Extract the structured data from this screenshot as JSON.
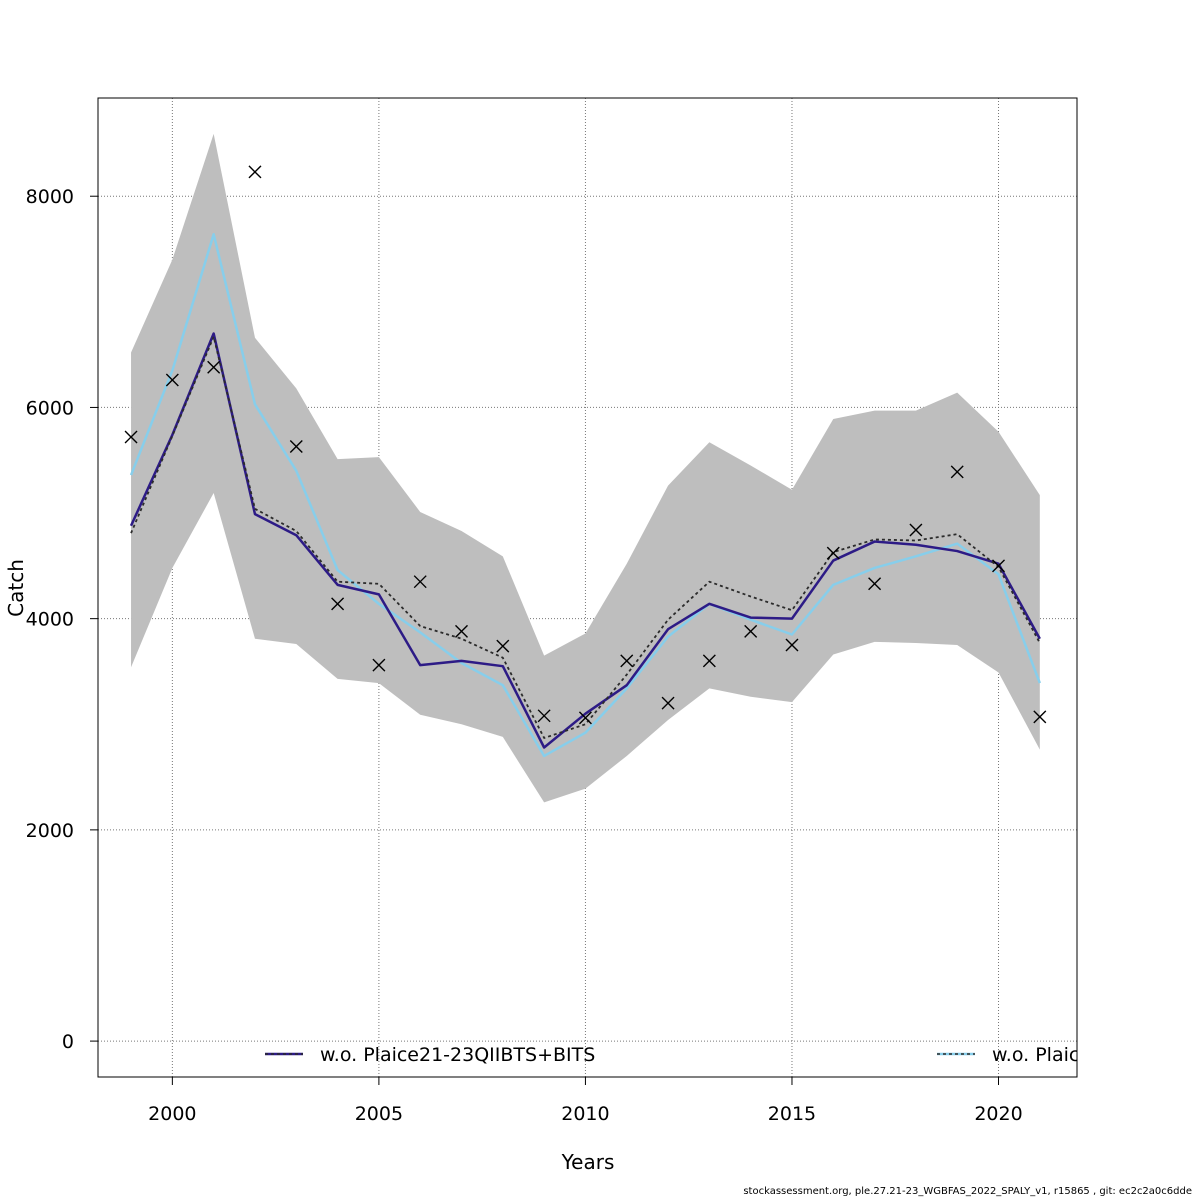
{
  "chart_data": {
    "type": "line",
    "xlabel": "Years",
    "ylabel": "Catch",
    "xlim": [
      1998.2,
      2021.9
    ],
    "ylim": [
      -340,
      8930
    ],
    "x_ticks": [
      2000,
      2005,
      2010,
      2015,
      2020
    ],
    "y_ticks": [
      0,
      2000,
      4000,
      6000,
      8000
    ],
    "grid": true,
    "legend_position": "bottom",
    "x": [
      1999,
      2000,
      2001,
      2002,
      2003,
      2004,
      2005,
      2006,
      2007,
      2008,
      2009,
      2010,
      2011,
      2012,
      2013,
      2014,
      2015,
      2016,
      2017,
      2018,
      2019,
      2020,
      2021
    ],
    "band": {
      "color": "#bebebe",
      "upper": [
        6520,
        7400,
        8590,
        6660,
        6180,
        5510,
        5530,
        5010,
        4830,
        4590,
        3650,
        3860,
        4520,
        5260,
        5670,
        5450,
        5220,
        5890,
        5970,
        5970,
        6140,
        5770,
        5170
      ],
      "lower": [
        3540,
        4480,
        5190,
        3810,
        3760,
        3430,
        3390,
        3090,
        3000,
        2880,
        2260,
        2390,
        2700,
        3040,
        3340,
        3260,
        3210,
        3660,
        3780,
        3770,
        3750,
        3490,
        2760
      ]
    },
    "series": [
      {
        "name": "w.o. Plaice21-23QIIBTS+BITS",
        "color": "#2d1b86",
        "style": "solid",
        "values": [
          4880,
          5740,
          6700,
          4990,
          4790,
          4320,
          4230,
          3560,
          3600,
          3550,
          2780,
          3100,
          3370,
          3900,
          4140,
          4010,
          4000,
          4550,
          4730,
          4700,
          4640,
          4520,
          3810
        ]
      },
      {
        "name": "",
        "color": "#2b2b2b",
        "style": "dashed",
        "values": [
          4810,
          5730,
          6670,
          5040,
          4830,
          4350,
          4330,
          3930,
          3810,
          3630,
          2870,
          3000,
          3470,
          3990,
          4350,
          4210,
          4080,
          4630,
          4750,
          4740,
          4800,
          4490,
          3770
        ]
      },
      {
        "name": "w.o. Plaic",
        "color": "#87ceeb",
        "style": "solid",
        "values": [
          5360,
          6350,
          7640,
          6030,
          5400,
          4460,
          4140,
          3870,
          3580,
          3370,
          2700,
          2920,
          3340,
          3830,
          4140,
          3990,
          3850,
          4320,
          4480,
          4590,
          4710,
          4420,
          3390
        ]
      }
    ],
    "observations": {
      "marker": "x",
      "values": [
        5720,
        6260,
        6380,
        8230,
        5630,
        4140,
        3560,
        4350,
        3880,
        3740,
        3080,
        3060,
        3600,
        3200,
        3600,
        3880,
        3750,
        4620,
        4330,
        4840,
        5390,
        4500,
        3070
      ]
    }
  },
  "footer": "stockassessment.org, ple.27.21-23_WGBFAS_2022_SPALY_v1, r15865 , git: ec2c2a0c6dde"
}
